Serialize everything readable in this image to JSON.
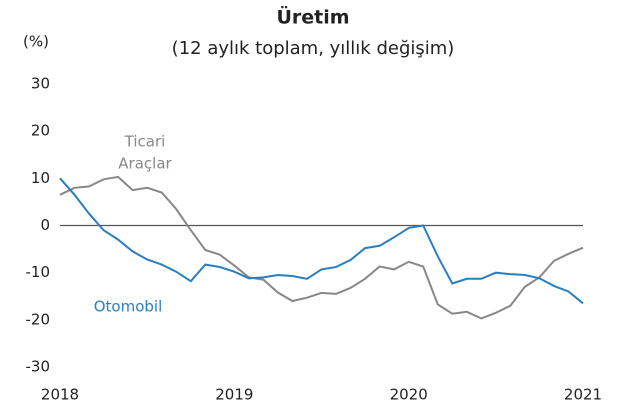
{
  "chart_data": {
    "type": "line",
    "title": "Üretim",
    "subtitle": "(12 aylık toplam, yıllık değişim)",
    "y_unit": "(%)",
    "categories": [
      "2018",
      null,
      null,
      null,
      null,
      null,
      null,
      null,
      null,
      null,
      null,
      null,
      "2019",
      null,
      null,
      null,
      null,
      null,
      null,
      null,
      null,
      null,
      null,
      null,
      "2020",
      null,
      null,
      null,
      null,
      null,
      null,
      null,
      null,
      null,
      null,
      null,
      "2021"
    ],
    "series": [
      {
        "name": "Otomobil",
        "color": "#2a7fc1",
        "values": [
          10,
          6.5,
          2.5,
          -1,
          -3,
          -5.5,
          -7.2,
          -8.3,
          -9.8,
          -11.8,
          -8.3,
          -8.8,
          -9.8,
          -11.2,
          -11,
          -10.5,
          -10.7,
          -11.3,
          -9.3,
          -8.8,
          -7.3,
          -4.8,
          -4.3,
          -2.5,
          -0.5,
          0,
          -6.5,
          -12.3,
          -11.3,
          -11.3,
          -10,
          -10.3,
          -10.5,
          -11.2,
          -12.8,
          -14,
          -16.5
        ]
      },
      {
        "name": "Ticari Araçlar",
        "color": "#888888",
        "values": [
          6.5,
          8,
          8.3,
          9.8,
          10.3,
          7.5,
          8,
          7,
          3.5,
          -1,
          -5.2,
          -6.2,
          -8.5,
          -11,
          -11.5,
          -14.2,
          -16,
          -15.3,
          -14.3,
          -14.5,
          -13.2,
          -11.3,
          -8.7,
          -9.3,
          -7.7,
          -8.7,
          -16.7,
          -18.7,
          -18.3,
          -19.7,
          -18.5,
          -17,
          -13,
          -11,
          -7.5,
          -6,
          -4.7
        ]
      }
    ],
    "series_labels": [
      [
        "Otomobil"
      ],
      [
        "Ticari",
        "Araçlar"
      ]
    ],
    "ylim": [
      -30,
      30
    ],
    "yticks": [
      30,
      20,
      10,
      0,
      -10,
      -20,
      -30
    ],
    "zero_line": true
  }
}
